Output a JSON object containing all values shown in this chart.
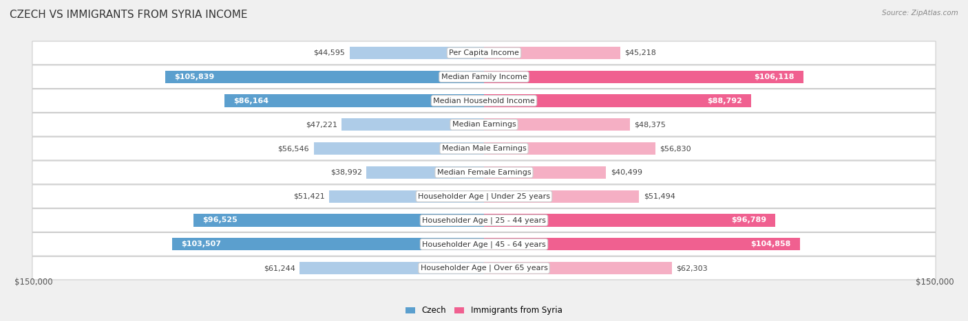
{
  "title": "Czech vs Immigrants from Syria Income",
  "source": "Source: ZipAtlas.com",
  "categories": [
    "Per Capita Income",
    "Median Family Income",
    "Median Household Income",
    "Median Earnings",
    "Median Male Earnings",
    "Median Female Earnings",
    "Householder Age | Under 25 years",
    "Householder Age | 25 - 44 years",
    "Householder Age | 45 - 64 years",
    "Householder Age | Over 65 years"
  ],
  "czech_values": [
    44595,
    105839,
    86164,
    47221,
    56546,
    38992,
    51421,
    96525,
    103507,
    61244
  ],
  "syria_values": [
    45218,
    106118,
    88792,
    48375,
    56830,
    40499,
    51494,
    96789,
    104858,
    62303
  ],
  "czech_labels": [
    "$44,595",
    "$105,839",
    "$86,164",
    "$47,221",
    "$56,546",
    "$38,992",
    "$51,421",
    "$96,525",
    "$103,507",
    "$61,244"
  ],
  "syria_labels": [
    "$45,218",
    "$106,118",
    "$88,792",
    "$48,375",
    "$56,830",
    "$40,499",
    "$51,494",
    "$96,789",
    "$104,858",
    "$62,303"
  ],
  "czech_color_light": "#aecce8",
  "czech_color_dark": "#5b9fce",
  "syria_color_light": "#f5afc4",
  "syria_color_dark": "#f06090",
  "max_value": 150000,
  "bar_height": 0.52,
  "bg_color": "#f0f0f0",
  "row_bg": "#ffffff",
  "legend_czech": "Czech",
  "legend_syria": "Immigrants from Syria",
  "title_fontsize": 11,
  "label_fontsize": 8,
  "cat_fontsize": 8,
  "axis_label": "$150,000",
  "inside_threshold": 75000
}
